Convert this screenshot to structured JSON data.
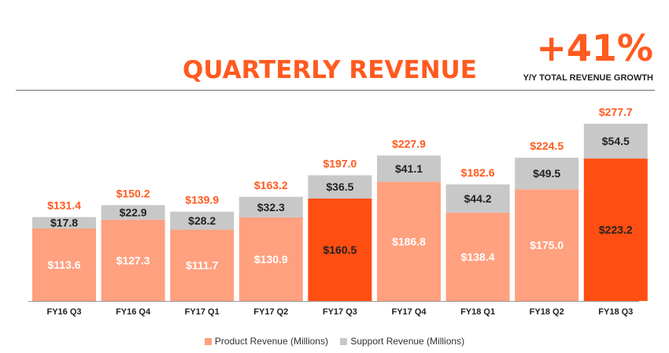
{
  "header": {
    "title": "QUARTERLY REVENUE",
    "growth_value": "+41%",
    "growth_label": "Y/Y TOTAL REVENUE GROWTH"
  },
  "colors": {
    "accent": "#ff5a1f",
    "product": "#ffa07f",
    "product_highlight": "#ff4e12",
    "support": "#c8c8c8",
    "total_label": "#ff5a1f"
  },
  "chart_data": {
    "type": "bar",
    "stacked": true,
    "title": "QUARTERLY REVENUE",
    "categories": [
      "FY16 Q3",
      "FY16 Q4",
      "FY17 Q1",
      "FY17 Q2",
      "FY17 Q3",
      "FY17 Q4",
      "FY18 Q1",
      "FY18 Q2",
      "FY18 Q3"
    ],
    "series": [
      {
        "name": "Product Revenue (Millions)",
        "values": [
          113.6,
          127.3,
          111.7,
          130.9,
          160.5,
          186.8,
          138.4,
          175.0,
          223.2
        ],
        "labels": [
          "$113.6",
          "$127.3",
          "$111.7",
          "$130.9",
          "$160.5",
          "$186.8",
          "$138.4",
          "$175.0",
          "$223.2"
        ]
      },
      {
        "name": "Support Revenue (Millions)",
        "values": [
          17.8,
          22.9,
          28.2,
          32.3,
          36.5,
          41.1,
          44.2,
          49.5,
          54.5
        ],
        "labels": [
          "$17.8",
          "$22.9",
          "$28.2",
          "$32.3",
          "$36.5",
          "$41.1",
          "$44.2",
          "$49.5",
          "$54.5"
        ]
      }
    ],
    "totals": [
      131.4,
      150.2,
      139.9,
      163.2,
      197.0,
      227.9,
      182.6,
      224.5,
      277.7
    ],
    "total_labels": [
      "$131.4",
      "$150.2",
      "$139.9",
      "$163.2",
      "$197.0",
      "$227.9",
      "$182.6",
      "$224.5",
      "$277.7"
    ],
    "highlighted": [
      "FY17 Q3",
      "FY18 Q3"
    ],
    "ylim": [
      0,
      277.7
    ],
    "grid": false,
    "legend_position": "bottom-center"
  }
}
